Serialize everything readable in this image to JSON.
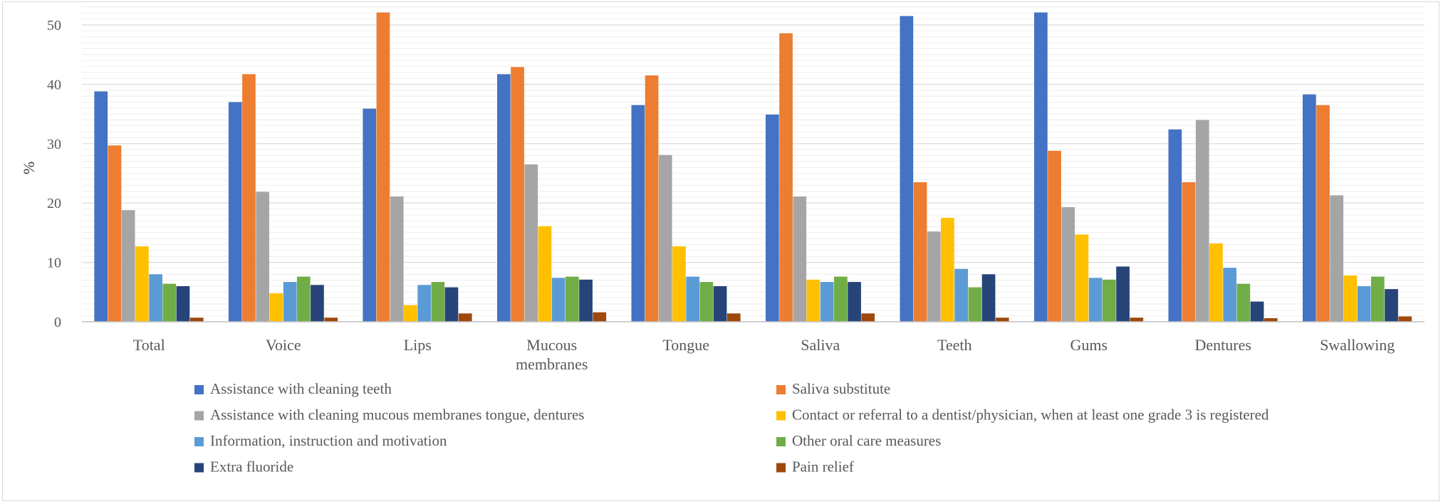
{
  "chart_data": {
    "type": "bar",
    "ylabel": "%",
    "xlabel": "",
    "ylim": [
      0,
      53
    ],
    "yticks": [
      0,
      10,
      20,
      30,
      40,
      50
    ],
    "minor_gridlines": true,
    "legend_position": "bottom",
    "categories": [
      "Total",
      "Voice",
      "Lips",
      "Mucous membranes",
      "Tongue",
      "Saliva",
      "Teeth",
      "Gums",
      "Dentures",
      "Swallowing"
    ],
    "series": [
      {
        "name": "Assistance with cleaning teeth",
        "color": "#4472C4",
        "values": [
          38.8,
          37.0,
          35.9,
          41.7,
          36.5,
          34.9,
          51.5,
          52.1,
          32.4,
          38.3
        ]
      },
      {
        "name": "Saliva substitute",
        "color": "#ED7D31",
        "values": [
          29.7,
          41.7,
          52.1,
          42.9,
          41.5,
          48.6,
          23.5,
          28.8,
          23.5,
          36.5
        ]
      },
      {
        "name": "Assistance with cleaning mucous membranes tongue, dentures",
        "color": "#A5A5A5",
        "values": [
          18.8,
          21.9,
          21.1,
          26.5,
          28.1,
          21.1,
          15.2,
          19.3,
          34.0,
          21.3
        ]
      },
      {
        "name": "Contact or referral to a dentist/physician, when at least one grade 3 is registered",
        "color": "#FFC000",
        "values": [
          12.7,
          4.8,
          2.8,
          16.1,
          12.7,
          7.1,
          17.5,
          14.7,
          13.2,
          7.8
        ]
      },
      {
        "name": "Information, instruction and motivation",
        "color": "#5B9BD5",
        "values": [
          8.0,
          6.7,
          6.2,
          7.4,
          7.6,
          6.7,
          8.9,
          7.4,
          9.1,
          6.0
        ]
      },
      {
        "name": "Other oral care measures",
        "color": "#70AD47",
        "values": [
          6.4,
          7.6,
          6.7,
          7.6,
          6.7,
          7.6,
          5.8,
          7.1,
          6.4,
          7.6
        ]
      },
      {
        "name": "Extra fluoride",
        "color": "#264478",
        "values": [
          6.0,
          6.2,
          5.8,
          7.1,
          6.0,
          6.7,
          8.0,
          9.3,
          3.4,
          5.5
        ]
      },
      {
        "name": "Pain relief",
        "color": "#9E480E",
        "values": [
          0.7,
          0.7,
          1.4,
          1.6,
          1.4,
          1.4,
          0.7,
          0.7,
          0.6,
          0.9
        ]
      }
    ]
  }
}
